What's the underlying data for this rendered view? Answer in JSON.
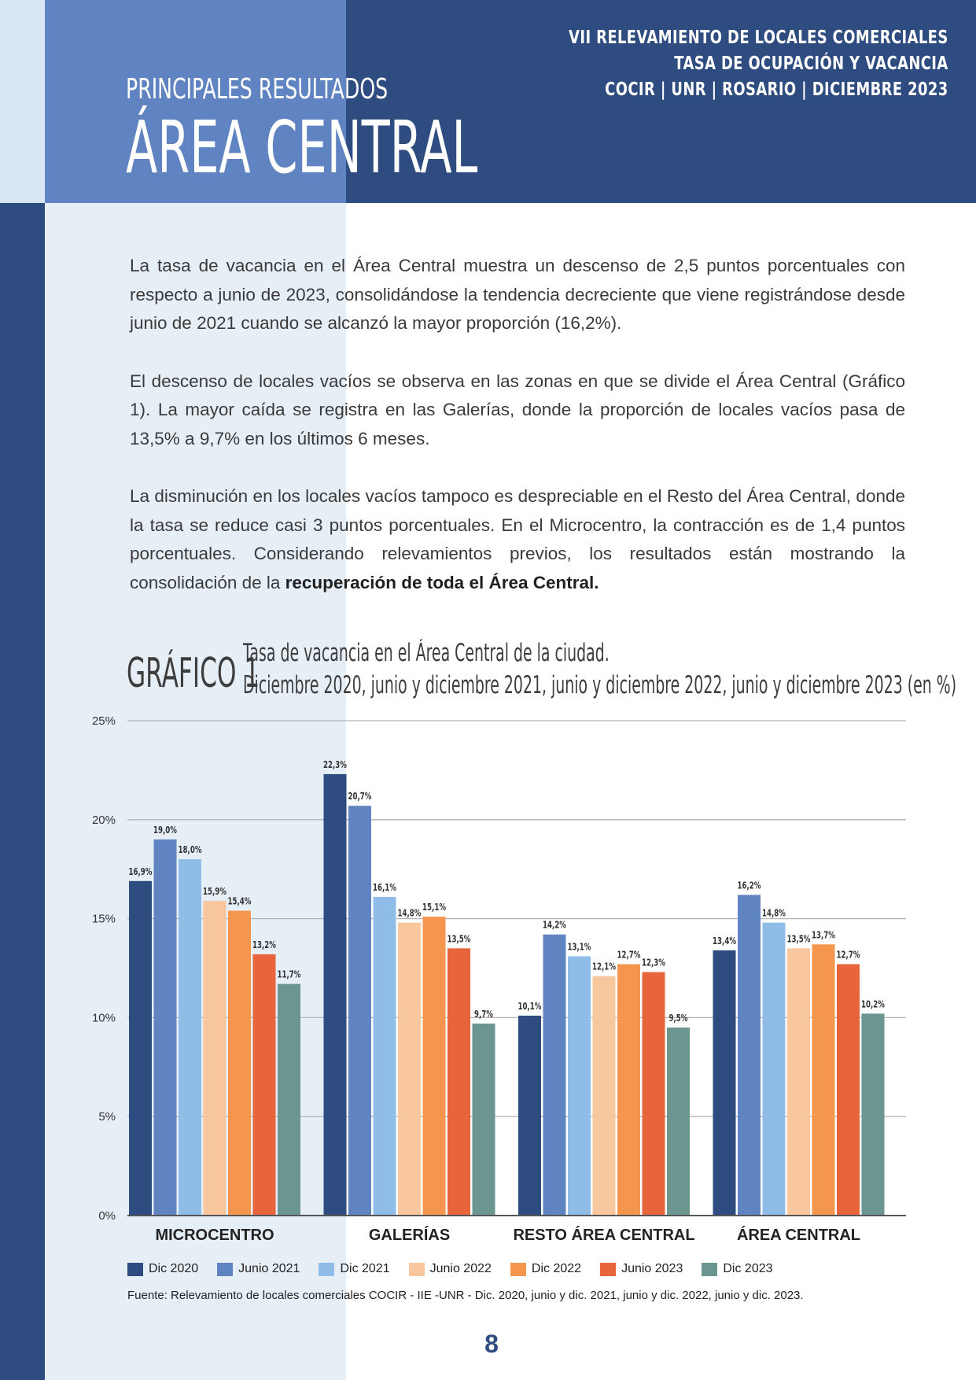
{
  "header": {
    "lines": [
      "VII RELEVAMIENTO DE LOCALES COMERCIALES",
      "TASA DE OCUPACIÓN Y VACANCIA",
      "COCIR | UNR | ROSARIO | DICIEMBRE 2023"
    ],
    "kicker": "PRINCIPALES RESULTADOS",
    "section_title": "ÁREA CENTRAL"
  },
  "body": {
    "p1": "La tasa de vacancia en el Área Central muestra un descenso de 2,5 puntos porcentuales con respecto a junio de 2023, consolidándose la tendencia decreciente que viene registrándose desde junio de 2021 cuando se alcanzó la mayor proporción (16,2%).",
    "p2": "El descenso de locales vacíos se observa en las zonas en que se divide el Área Central (Gráfico 1). La mayor caída se registra en las Galerías, donde la proporción de locales vacíos pasa de 13,5% a 9,7% en los últimos 6 meses.",
    "p3": "La disminución en los locales vacíos tampoco es despreciable en el Resto del Área Central, donde la tasa se reduce casi 3 puntos porcentuales. En el Microcentro, la contracción es de 1,4 puntos porcentuales. Considerando relevamientos previos, los resultados están mostrando la consolidación de la ",
    "p3_bold": "recuperación de toda el Área Central."
  },
  "chart_label": "GRÁFICO 1",
  "chart_data": {
    "type": "bar",
    "title": "Tasa de vacancia en el Área Central de la ciudad.",
    "subtitle": "Diciembre 2020, junio y diciembre 2021, junio y diciembre 2022, junio y diciembre 2023 (en %)",
    "categories": [
      "MICROCENTRO",
      "GALERÍAS",
      "RESTO ÁREA CENTRAL",
      "ÁREA CENTRAL"
    ],
    "ylim": [
      0,
      25
    ],
    "yticks": [
      0,
      5,
      10,
      15,
      20,
      25
    ],
    "ytick_labels": [
      "0%",
      "5%",
      "10%",
      "15%",
      "20%",
      "25%"
    ],
    "grid": true,
    "legend_position": "bottom",
    "series": [
      {
        "name": "Dic 2020",
        "color": "#2f4c80",
        "values": [
          16.9,
          22.3,
          10.1,
          13.4
        ],
        "labels": [
          "16,9%",
          "22,3%",
          "10,1%",
          "13,4%"
        ]
      },
      {
        "name": "Junio 2021",
        "color": "#6083c1",
        "values": [
          19.0,
          20.7,
          14.2,
          16.2
        ],
        "labels": [
          "19,0%",
          "20,7%",
          "14,2%",
          "16,2%"
        ]
      },
      {
        "name": "Dic 2021",
        "color": "#8fbde8",
        "values": [
          18.0,
          16.1,
          13.1,
          14.8
        ],
        "labels": [
          "18,0%",
          "16,1%",
          "13,1%",
          "14,8%"
        ]
      },
      {
        "name": "Junio 2022",
        "color": "#f9c79e",
        "values": [
          15.9,
          14.8,
          12.1,
          13.5
        ],
        "labels": [
          "15,9%",
          "14,8%",
          "12,1%",
          "13,5%"
        ]
      },
      {
        "name": "Dic 2022",
        "color": "#f5964f",
        "values": [
          15.4,
          15.1,
          12.7,
          13.7
        ],
        "labels": [
          "15,4%",
          "15,1%",
          "12,7%",
          "13,7%"
        ]
      },
      {
        "name": "Junio 2023",
        "color": "#e8643a",
        "values": [
          13.2,
          13.5,
          12.3,
          12.7
        ],
        "labels": [
          "13,2%",
          "13,5%",
          "12,3%",
          "12,7%"
        ]
      },
      {
        "name": "Dic 2023",
        "color": "#6a968f",
        "values": [
          11.7,
          9.7,
          9.5,
          10.2
        ],
        "labels": [
          "11,7%",
          "9,7%",
          "9,5%",
          "10,2%"
        ]
      }
    ]
  },
  "source": "Fuente: Relevamiento de locales comerciales COCIR - IIE -UNR - Dic. 2020, junio y dic. 2021, junio y dic. 2022, junio y dic. 2023.",
  "page_number": "8"
}
